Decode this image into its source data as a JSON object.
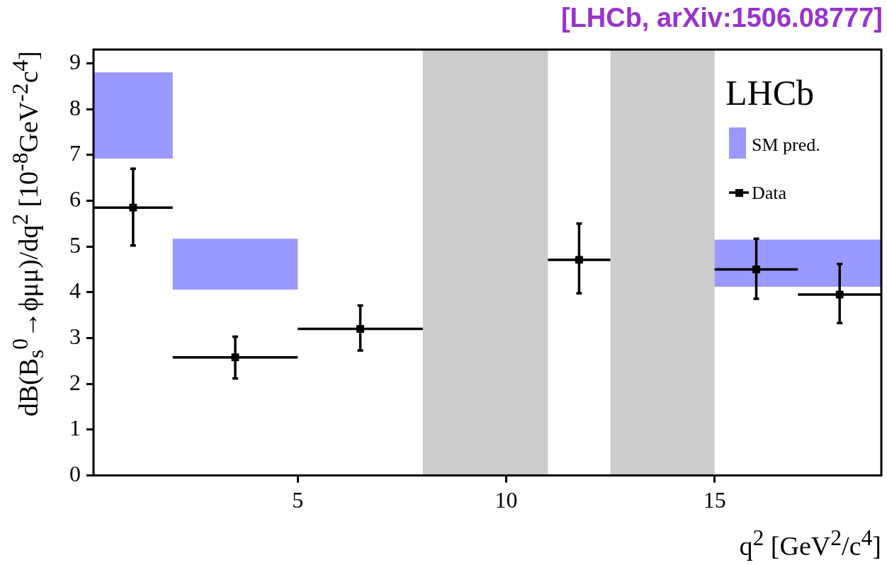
{
  "chart_data": {
    "type": "scatter",
    "title": "[LHCb, arXiv:1506.08777]",
    "xlabel": "q$^{2}$ [GeV$^{2}$/c$^{4}$]",
    "ylabel": "dB(B$_{s}$$^{0}$→ϕμμ)/dq$^{2}$ [10$^{-8}$GeV$^{-2}$c$^{4}$]",
    "annotations": [
      "LHCb"
    ],
    "xlim": [
      0.1,
      19
    ],
    "xticks": [
      5,
      10,
      15
    ],
    "ylim": [
      0,
      9.3
    ],
    "yticks": [
      0,
      1,
      2,
      3,
      4,
      5,
      6,
      7,
      8,
      9
    ],
    "grid": false,
    "legend": "top right",
    "marker": "square",
    "bands": [
      {
        "axis": "x",
        "from": 8,
        "to": 11,
        "color": "#cccccc"
      },
      {
        "axis": "x",
        "from": 12.5,
        "to": 15,
        "color": "#cccccc"
      }
    ],
    "series": [
      {
        "name": "SM pred.",
        "type": "histogram",
        "color": "#9999ff",
        "bins": [
          0.1,
          2,
          5,
          15,
          19
        ],
        "base": [
          6.92,
          4.06,
          null,
          4.12
        ],
        "values": [
          1.88,
          1.11,
          null,
          1.03
        ]
      },
      {
        "name": "Data",
        "type": "scatter",
        "color": "#000000",
        "x": [
          1.05,
          3.5,
          6.5,
          11.75,
          16,
          18
        ],
        "values": [
          5.85,
          2.58,
          3.2,
          4.71,
          4.5,
          3.95
        ],
        "errors": [
          [
            5.02,
            6.7
          ],
          [
            2.12,
            3.03
          ],
          [
            2.73,
            3.71
          ],
          [
            3.98,
            5.5
          ],
          [
            3.86,
            5.17
          ],
          [
            3.33,
            4.62
          ]
        ],
        "xerrors": [
          [
            0.1,
            2
          ],
          [
            2,
            5
          ],
          [
            5,
            8
          ],
          [
            11,
            12.5
          ],
          [
            15,
            17
          ],
          [
            17,
            19
          ]
        ]
      }
    ]
  }
}
